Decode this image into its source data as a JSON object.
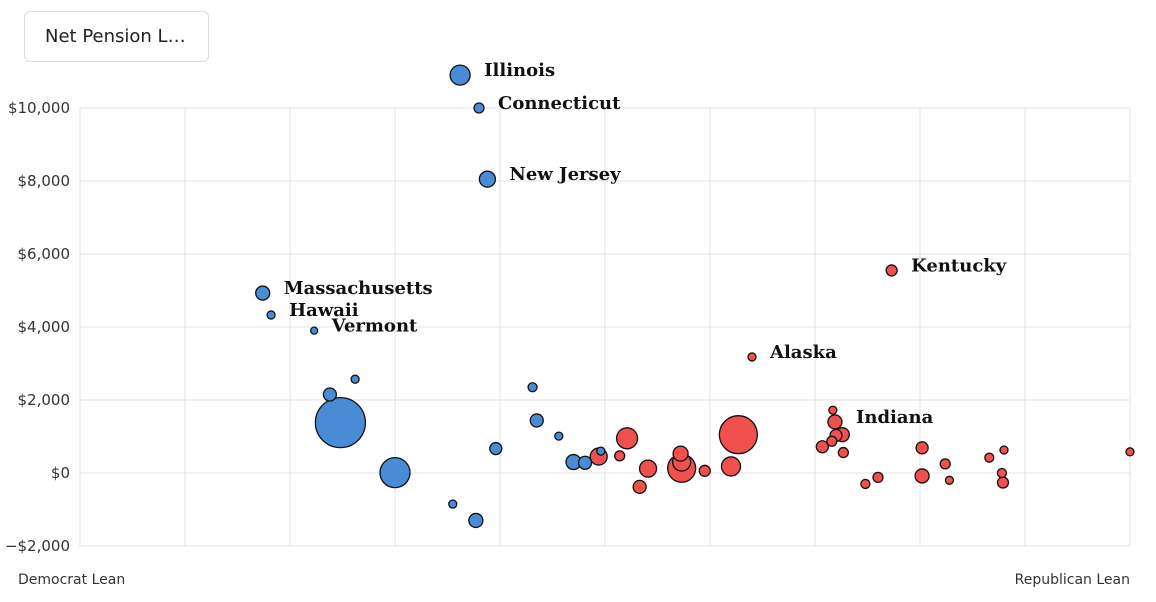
{
  "selector": {
    "value": "Net Pension L…"
  },
  "colors": {
    "democrat": "#4a8bd6",
    "republican": "#f0504e"
  },
  "chart_data": {
    "type": "scatter",
    "title": "",
    "xlabel_left": "Democrat Lean",
    "xlabel_right": "Republican Lean",
    "ylim": [
      -2000,
      10000
    ],
    "yticks": [
      10000,
      8000,
      6000,
      4000,
      2000,
      0,
      -2000
    ],
    "ytick_labels": [
      "$10,000",
      "$8,000",
      "$6,000",
      "$4,000",
      "$2,000",
      "$0",
      "−$2,000"
    ],
    "xlim": [
      0,
      100
    ],
    "grid": true,
    "points": [
      {
        "x": 36.2,
        "y": 10900,
        "size": 10,
        "party": "D",
        "label": "Illinois"
      },
      {
        "x": 38.0,
        "y": 10000,
        "size": 5,
        "party": "D",
        "label": "Connecticut"
      },
      {
        "x": 38.8,
        "y": 8050,
        "size": 8,
        "party": "D",
        "label": "New Jersey"
      },
      {
        "x": 17.4,
        "y": 4930,
        "size": 7,
        "party": "D",
        "label": "Massachusetts"
      },
      {
        "x": 18.2,
        "y": 4330,
        "size": 4,
        "party": "D",
        "label": "Hawaii"
      },
      {
        "x": 22.3,
        "y": 3900,
        "size": 3.5,
        "party": "D",
        "label": "Vermont"
      },
      {
        "x": 26.2,
        "y": 2570,
        "size": 4,
        "party": "D"
      },
      {
        "x": 23.8,
        "y": 2150,
        "size": 6.5,
        "party": "D"
      },
      {
        "x": 24.8,
        "y": 1380,
        "size": 25,
        "party": "D"
      },
      {
        "x": 43.1,
        "y": 2350,
        "size": 4.5,
        "party": "D"
      },
      {
        "x": 43.5,
        "y": 1440,
        "size": 6.5,
        "party": "D"
      },
      {
        "x": 45.6,
        "y": 1010,
        "size": 4,
        "party": "D"
      },
      {
        "x": 39.6,
        "y": 670,
        "size": 6,
        "party": "D"
      },
      {
        "x": 47.0,
        "y": 300,
        "size": 7.5,
        "party": "D"
      },
      {
        "x": 48.1,
        "y": 280,
        "size": 6.5,
        "party": "D"
      },
      {
        "x": 49.6,
        "y": 600,
        "size": 4,
        "party": "D"
      },
      {
        "x": 30.0,
        "y": 10,
        "size": 15,
        "party": "D"
      },
      {
        "x": 35.5,
        "y": -850,
        "size": 4,
        "party": "D"
      },
      {
        "x": 37.7,
        "y": -1300,
        "size": 7,
        "party": "D"
      },
      {
        "x": 77.3,
        "y": 5550,
        "size": 5.5,
        "party": "R",
        "label": "Kentucky"
      },
      {
        "x": 64.0,
        "y": 3180,
        "size": 4,
        "party": "R",
        "label": "Alaska"
      },
      {
        "x": 71.9,
        "y": 1400,
        "size": 7,
        "party": "R",
        "label": "Indiana"
      },
      {
        "x": 71.7,
        "y": 1720,
        "size": 4,
        "party": "R"
      },
      {
        "x": 72.0,
        "y": 1030,
        "size": 6,
        "party": "R"
      },
      {
        "x": 72.6,
        "y": 1050,
        "size": 7,
        "party": "R"
      },
      {
        "x": 71.6,
        "y": 870,
        "size": 5,
        "party": "R"
      },
      {
        "x": 72.7,
        "y": 560,
        "size": 5,
        "party": "R"
      },
      {
        "x": 70.7,
        "y": 720,
        "size": 6,
        "party": "R"
      },
      {
        "x": 62.7,
        "y": 1050,
        "size": 19,
        "party": "R"
      },
      {
        "x": 52.1,
        "y": 950,
        "size": 10.5,
        "party": "R"
      },
      {
        "x": 51.4,
        "y": 470,
        "size": 5,
        "party": "R"
      },
      {
        "x": 49.4,
        "y": 450,
        "size": 8.5,
        "party": "R"
      },
      {
        "x": 54.1,
        "y": 120,
        "size": 8.5,
        "party": "R"
      },
      {
        "x": 53.3,
        "y": -380,
        "size": 6.5,
        "party": "R"
      },
      {
        "x": 57.2,
        "y": 530,
        "size": 7.5,
        "party": "R"
      },
      {
        "x": 57.3,
        "y": 300,
        "size": 9,
        "party": "R"
      },
      {
        "x": 57.3,
        "y": 130,
        "size": 14,
        "party": "R"
      },
      {
        "x": 59.5,
        "y": 60,
        "size": 5.5,
        "party": "R"
      },
      {
        "x": 62.0,
        "y": 180,
        "size": 9.5,
        "party": "R"
      },
      {
        "x": 80.2,
        "y": 690,
        "size": 6,
        "party": "R"
      },
      {
        "x": 82.4,
        "y": 250,
        "size": 5,
        "party": "R"
      },
      {
        "x": 80.2,
        "y": -80,
        "size": 7,
        "party": "R"
      },
      {
        "x": 76.0,
        "y": -120,
        "size": 5,
        "party": "R"
      },
      {
        "x": 74.8,
        "y": -300,
        "size": 4.5,
        "party": "R"
      },
      {
        "x": 82.8,
        "y": -200,
        "size": 4,
        "party": "R"
      },
      {
        "x": 86.6,
        "y": 420,
        "size": 4.5,
        "party": "R"
      },
      {
        "x": 88.0,
        "y": 630,
        "size": 4,
        "party": "R"
      },
      {
        "x": 87.8,
        "y": 0,
        "size": 4.5,
        "party": "R"
      },
      {
        "x": 87.9,
        "y": -260,
        "size": 5.5,
        "party": "R"
      },
      {
        "x": 100.0,
        "y": 580,
        "size": 4,
        "party": "R"
      }
    ]
  }
}
